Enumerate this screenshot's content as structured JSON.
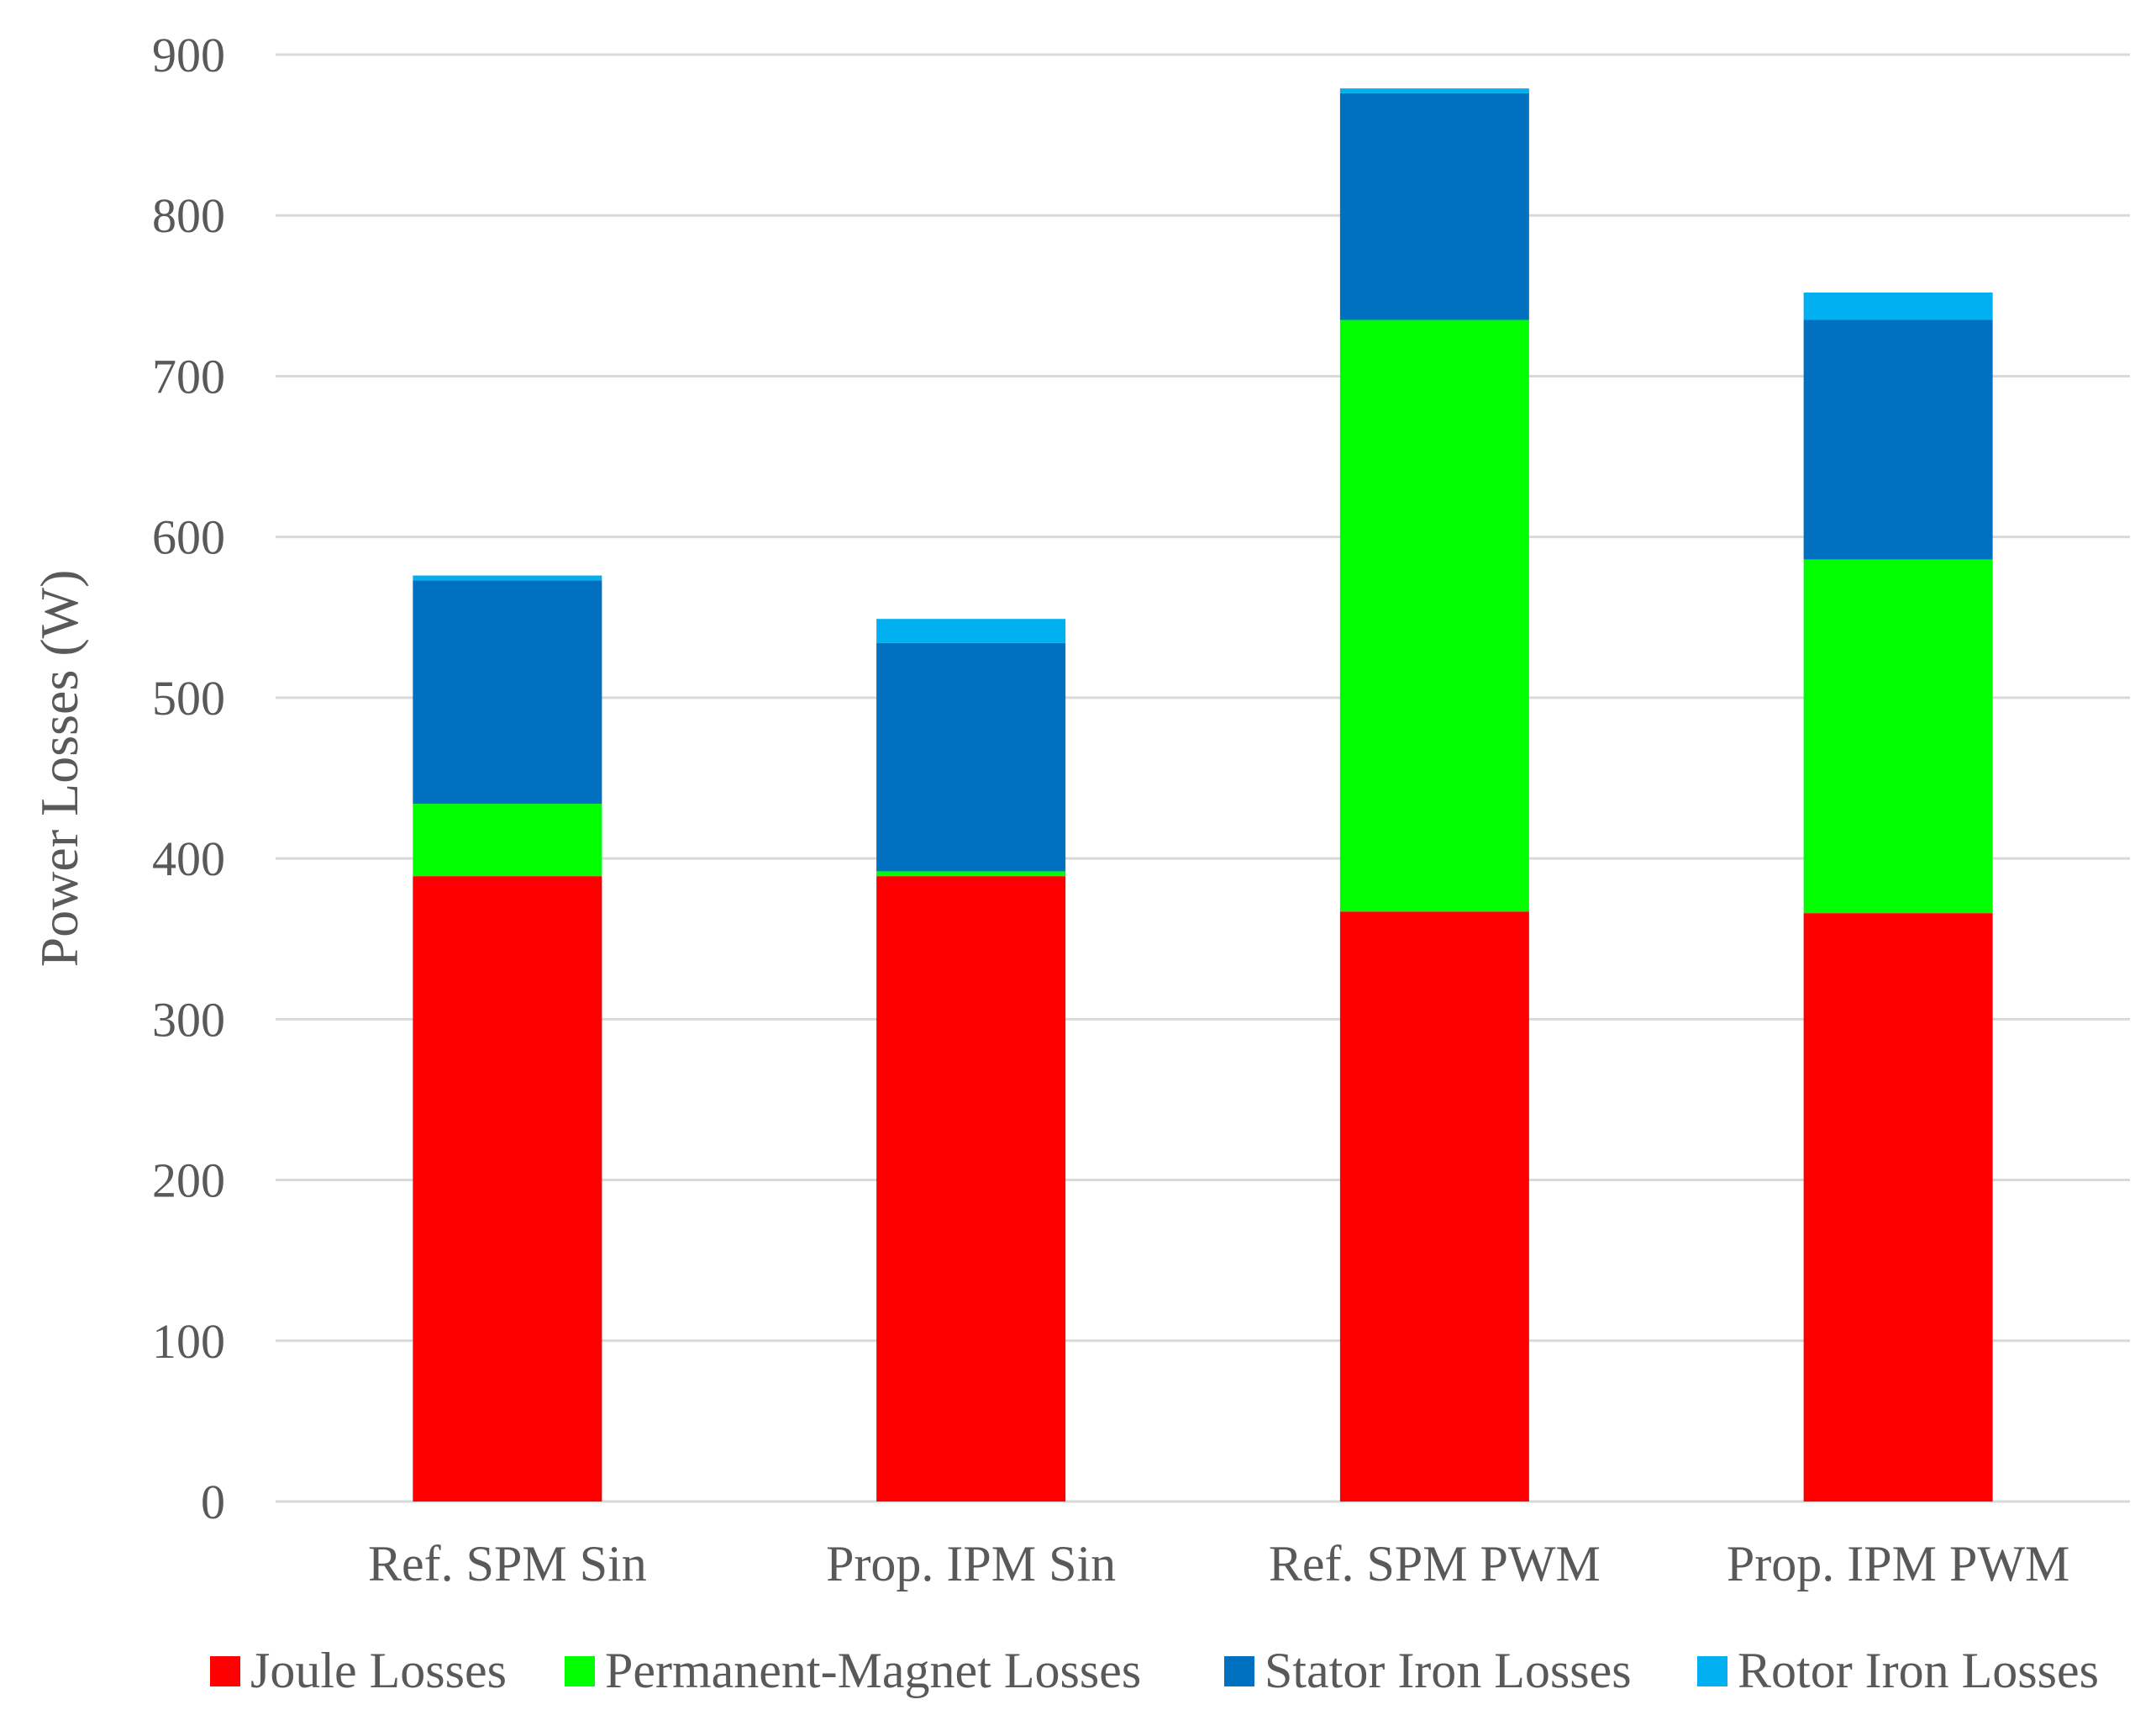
{
  "chart_data": {
    "type": "bar",
    "stacked": true,
    "title": "",
    "xlabel": "",
    "ylabel": "Power Losses (W)",
    "ylim": [
      0,
      900
    ],
    "yticks": [
      0,
      100,
      200,
      300,
      400,
      500,
      600,
      700,
      800,
      900
    ],
    "grid": true,
    "legend_position": "bottom",
    "categories": [
      "Ref. SPM Sin",
      "Prop. IPM Sin",
      "Ref. SPM PWM",
      "Prop. IPM PWM"
    ],
    "series": [
      {
        "name": "Joule Losses",
        "color": "#ff0000",
        "values": [
          389,
          389,
          367,
          366
        ]
      },
      {
        "name": "Permanent-Magnet Losses",
        "color": "#00ff00",
        "values": [
          45,
          3,
          368,
          220
        ]
      },
      {
        "name": "Stator Iron Losses",
        "color": "#0070c0",
        "values": [
          139,
          142,
          141,
          149
        ]
      },
      {
        "name": "Rotor Iron Losses",
        "color": "#00b0f0",
        "values": [
          3,
          15,
          3,
          17
        ]
      }
    ]
  }
}
